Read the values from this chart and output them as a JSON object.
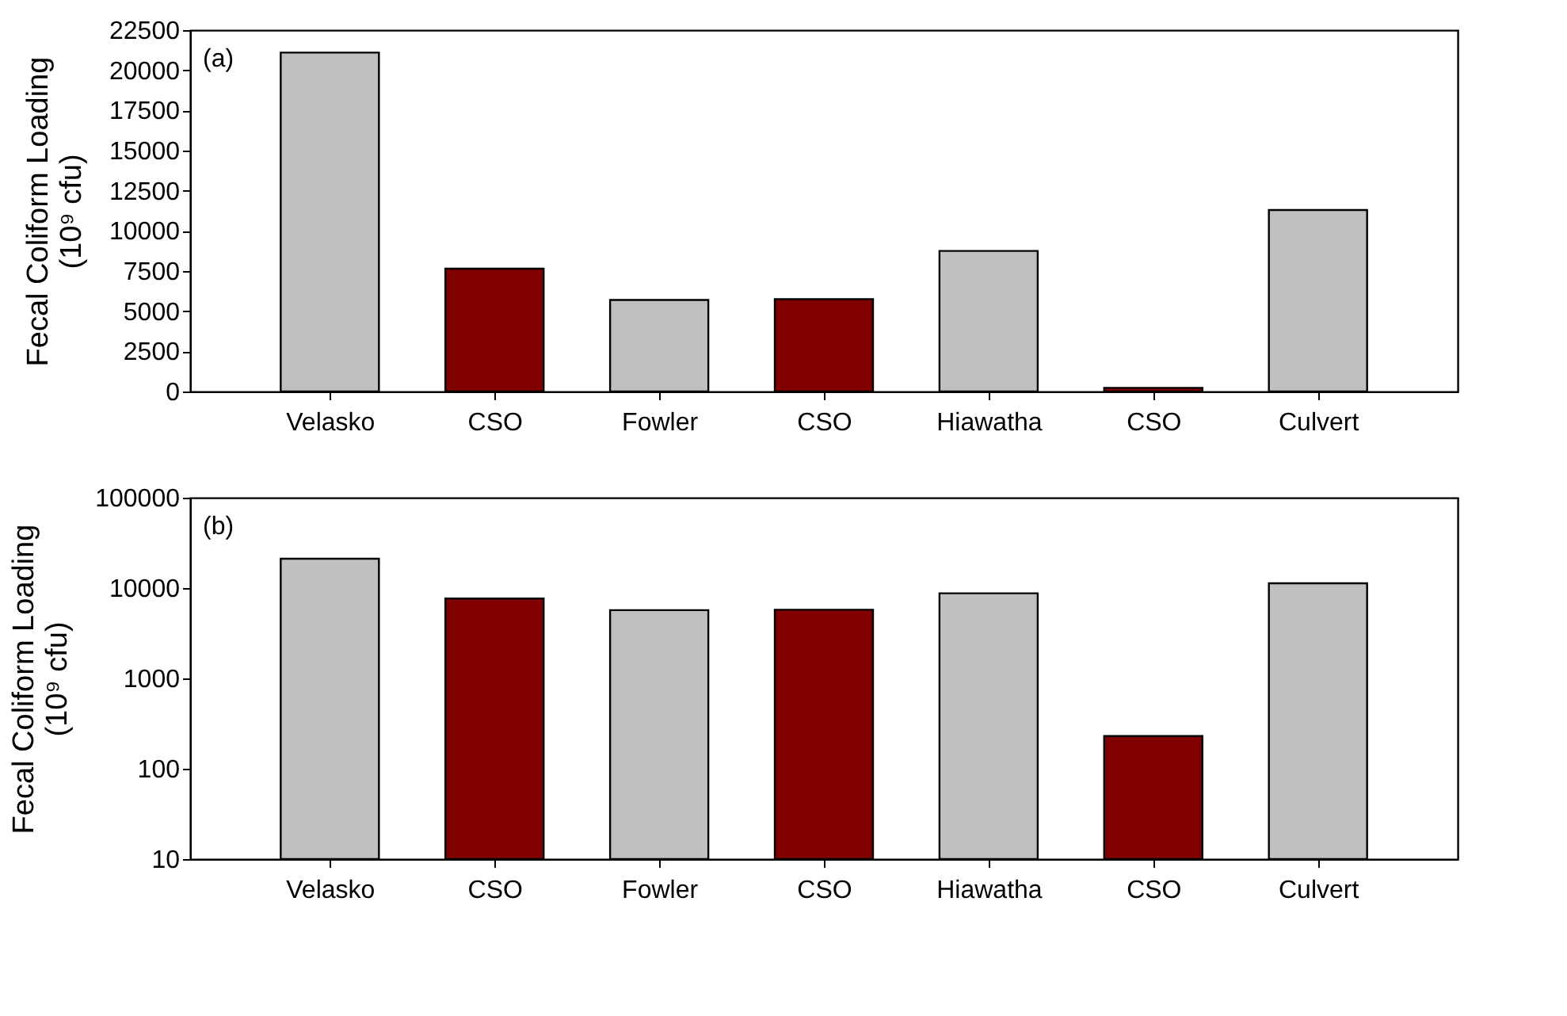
{
  "chart_data": [
    {
      "type": "bar",
      "ylabel": "Fecal Coliform Loading\n(10⁹ cfu)",
      "categories": [
        "Velasko",
        "CSO",
        "Fowler",
        "CSO",
        "Hiawatha",
        "CSO",
        "Culvert"
      ],
      "values": [
        21100,
        7650,
        5700,
        5750,
        8750,
        230,
        11300
      ],
      "colors": [
        "#c0c0c0",
        "#800000",
        "#c0c0c0",
        "#800000",
        "#c0c0c0",
        "#800000",
        "#c0c0c0"
      ],
      "ylim": [
        0,
        22500
      ],
      "yticks": [
        0,
        2500,
        5000,
        7500,
        10000,
        12500,
        15000,
        17500,
        20000,
        22500
      ],
      "annotations": [
        "(a)"
      ],
      "grid": false
    },
    {
      "type": "bar",
      "ylabel": "Fecal Coliform Loading\n(10⁹ cfu)",
      "categories": [
        "Velasko",
        "CSO",
        "Fowler",
        "CSO",
        "Hiawatha",
        "CSO",
        "Culvert"
      ],
      "values": [
        21100,
        7650,
        5700,
        5750,
        8750,
        230,
        11300
      ],
      "colors": [
        "#c0c0c0",
        "#800000",
        "#c0c0c0",
        "#800000",
        "#c0c0c0",
        "#800000",
        "#c0c0c0"
      ],
      "ylim": [
        10,
        100000
      ],
      "yticks": [
        10,
        100,
        1000,
        10000,
        100000
      ],
      "log": true,
      "annotations": [
        "(b)"
      ],
      "grid": false
    }
  ]
}
